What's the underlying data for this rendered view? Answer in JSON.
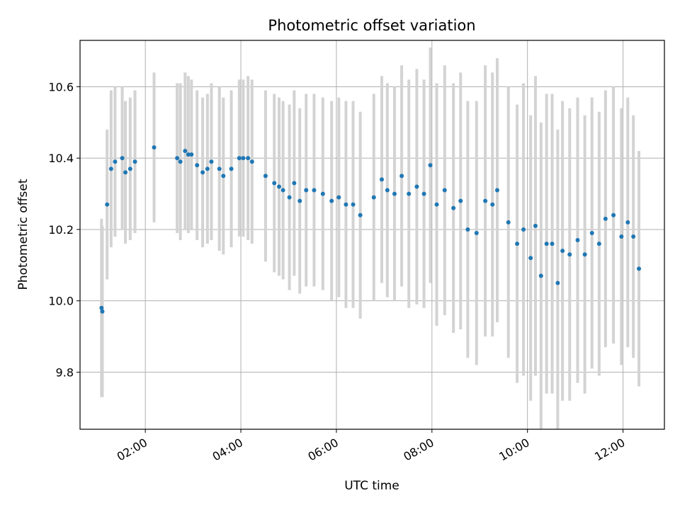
{
  "chart_data": {
    "type": "scatter",
    "title": "Photometric offset variation",
    "xlabel": "UTC time",
    "ylabel": "Photometric offset",
    "xlim": [
      "00:38",
      "12:52"
    ],
    "ylim": [
      9.64,
      10.73
    ],
    "x_ticks": [
      "02:00",
      "04:00",
      "06:00",
      "08:00",
      "10:00",
      "12:00"
    ],
    "y_ticks": [
      9.8,
      10.0,
      10.2,
      10.4,
      10.6
    ],
    "grid": true,
    "colors": {
      "points": "#1f77b4",
      "error_bars": "#d3d3d3",
      "grid": "#b0b0b0"
    },
    "series": [
      {
        "x": [
          "01:05",
          "01:06",
          "01:12",
          "01:17",
          "01:22",
          "01:31",
          "01:35",
          "01:41",
          "01:47",
          "02:11",
          "02:40",
          "02:44",
          "02:50",
          "02:54",
          "02:58",
          "03:05",
          "03:12",
          "03:18",
          "03:23",
          "03:33",
          "03:38",
          "03:48",
          "03:58",
          "04:03",
          "04:09",
          "04:14",
          "04:31",
          "04:42",
          "04:48",
          "04:53",
          "05:01",
          "05:07",
          "05:14",
          "05:22",
          "05:32",
          "05:43",
          "05:54",
          "06:03",
          "06:12",
          "06:21",
          "06:30",
          "06:47",
          "06:57",
          "07:04",
          "07:13",
          "07:22",
          "07:31",
          "07:41",
          "07:50",
          "07:58",
          "08:06",
          "08:16",
          "08:27",
          "08:36",
          "08:45",
          "08:56",
          "09:07",
          "09:16",
          "09:22",
          "09:36",
          "09:47",
          "09:55",
          "10:04",
          "10:10",
          "10:17",
          "10:24",
          "10:31",
          "10:38",
          "10:44",
          "10:53",
          "11:03",
          "11:12",
          "11:21",
          "11:30",
          "11:38",
          "11:48",
          "11:58",
          "12:06",
          "12:13",
          "12:20"
        ],
        "y": [
          9.98,
          9.97,
          10.27,
          10.37,
          10.39,
          10.4,
          10.36,
          10.37,
          10.39,
          10.43,
          10.4,
          10.39,
          10.42,
          10.41,
          10.41,
          10.38,
          10.36,
          10.37,
          10.39,
          10.37,
          10.35,
          10.37,
          10.4,
          10.4,
          10.4,
          10.39,
          10.35,
          10.33,
          10.32,
          10.31,
          10.29,
          10.33,
          10.28,
          10.31,
          10.31,
          10.3,
          10.28,
          10.29,
          10.27,
          10.27,
          10.24,
          10.29,
          10.34,
          10.31,
          10.3,
          10.35,
          10.3,
          10.32,
          10.3,
          10.38,
          10.27,
          10.31,
          10.26,
          10.28,
          10.2,
          10.19,
          10.28,
          10.27,
          10.31,
          10.22,
          10.16,
          10.2,
          10.12,
          10.21,
          10.07,
          10.16,
          10.16,
          10.05,
          10.14,
          10.13,
          10.17,
          10.13,
          10.19,
          10.16,
          10.23,
          10.24,
          10.18,
          10.22,
          10.18,
          10.09
        ],
        "err": [
          0.25,
          0.24,
          0.21,
          0.22,
          0.21,
          0.2,
          0.2,
          0.2,
          0.2,
          0.21,
          0.21,
          0.22,
          0.22,
          0.22,
          0.21,
          0.21,
          0.21,
          0.21,
          0.22,
          0.23,
          0.22,
          0.22,
          0.22,
          0.22,
          0.23,
          0.23,
          0.24,
          0.25,
          0.25,
          0.25,
          0.26,
          0.26,
          0.26,
          0.27,
          0.27,
          0.27,
          0.28,
          0.28,
          0.29,
          0.29,
          0.29,
          0.29,
          0.29,
          0.3,
          0.3,
          0.31,
          0.32,
          0.33,
          0.32,
          0.33,
          0.34,
          0.35,
          0.35,
          0.36,
          0.36,
          0.37,
          0.38,
          0.37,
          0.37,
          0.38,
          0.39,
          0.41,
          0.4,
          0.42,
          0.43,
          0.42,
          0.42,
          0.43,
          0.42,
          0.41,
          0.4,
          0.39,
          0.38,
          0.37,
          0.36,
          0.36,
          0.36,
          0.35,
          0.34,
          0.33
        ]
      }
    ]
  }
}
